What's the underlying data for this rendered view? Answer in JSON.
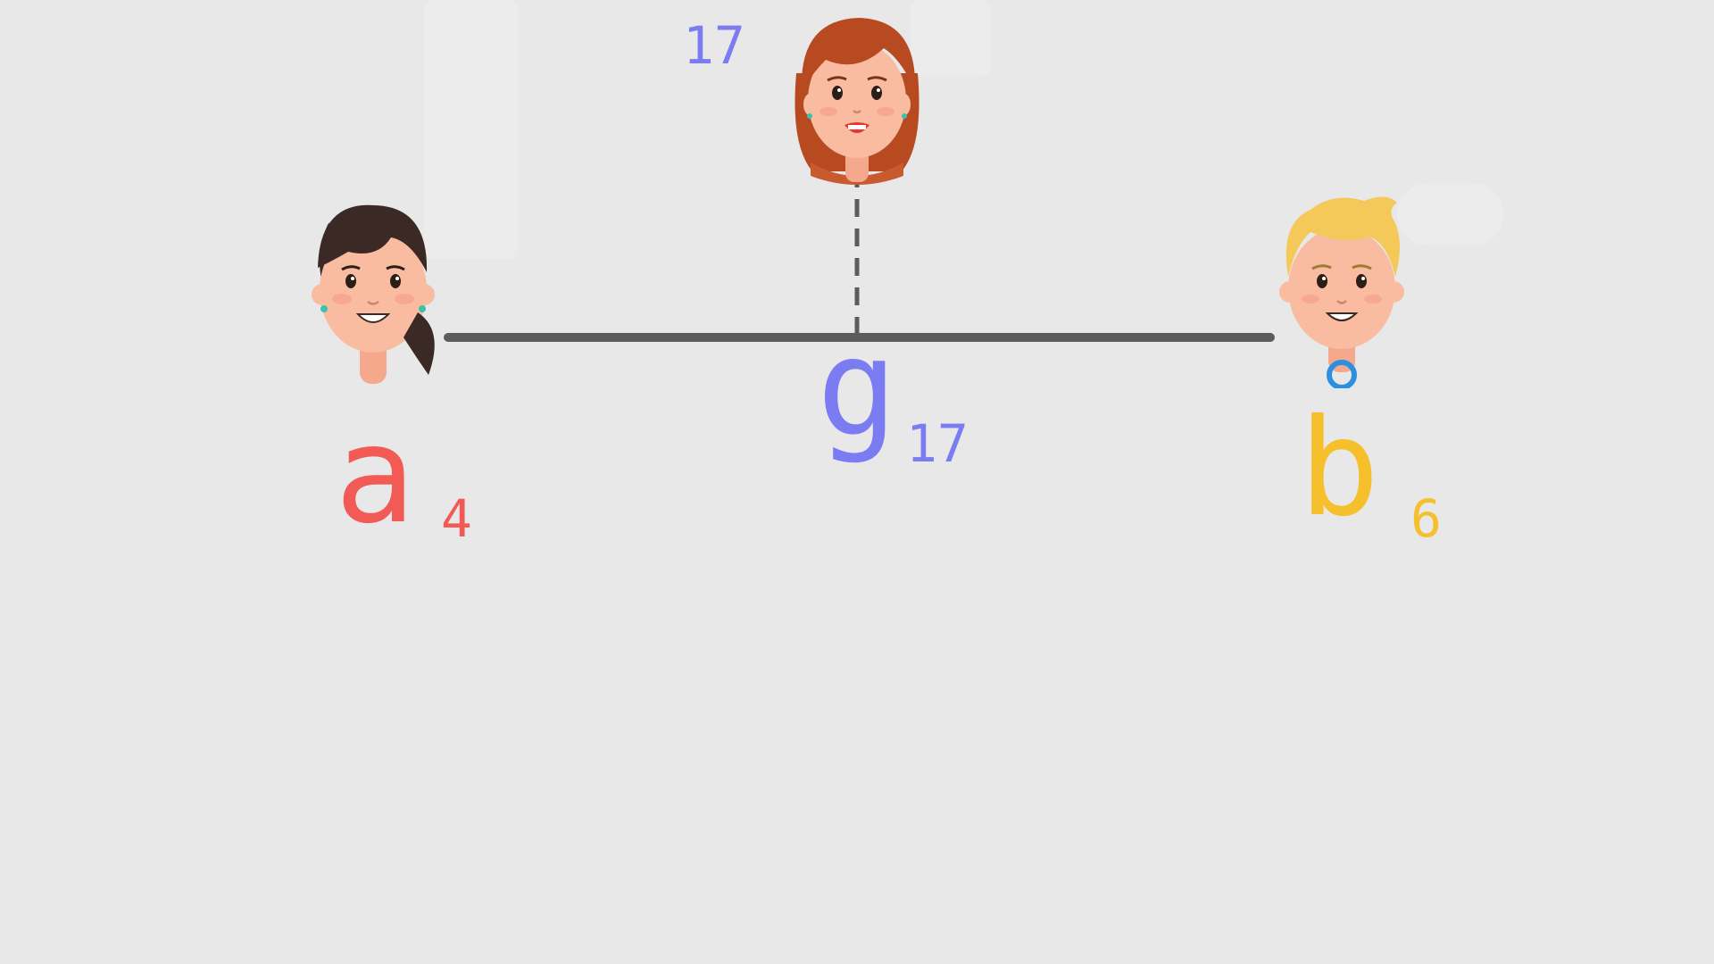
{
  "colors": {
    "background": "#e8e8e8",
    "bar": "#5c5c5c",
    "a": "#f25a55",
    "g": "#7b7cf2",
    "b": "#f6c02c"
  },
  "icons": {
    "left": "brunette-girl-avatar-icon",
    "middle": "redhead-girl-avatar-icon",
    "right": "blond-boy-avatar-icon"
  },
  "top_value": "17",
  "left_label": {
    "letter": "a",
    "number": "4"
  },
  "middle_label": {
    "letter": "g",
    "number": "17"
  },
  "right_label": {
    "letter": "b",
    "number": "6"
  }
}
